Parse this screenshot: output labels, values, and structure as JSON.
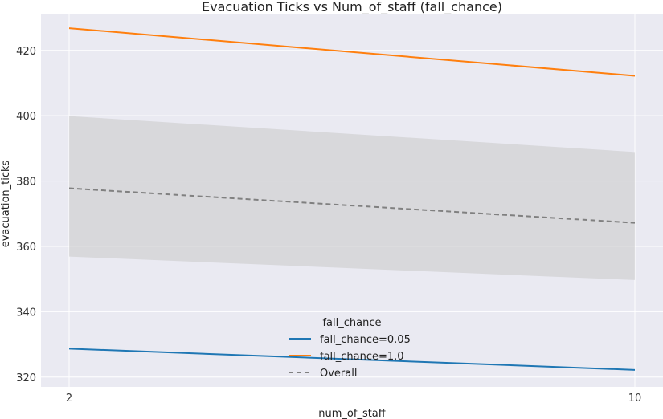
{
  "chart_data": {
    "type": "line",
    "title": "Evacuation Ticks vs Num_of_staff (fall_chance)",
    "xlabel": "num_of_staff",
    "ylabel": "evacuation_ticks",
    "x": [
      2,
      10
    ],
    "x_ticks": [
      2,
      10
    ],
    "ylim": [
      317,
      431
    ],
    "y_ticks": [
      320,
      340,
      360,
      380,
      400,
      420
    ],
    "grid": true,
    "series": [
      {
        "name": "fall_chance=0.05",
        "values": [
          328.7,
          322.2
        ],
        "color": "#1f77b4",
        "style": "solid"
      },
      {
        "name": "fall_chance=1.0",
        "values": [
          426.8,
          412.2
        ],
        "color": "#ff7f0e",
        "style": "solid"
      },
      {
        "name": "Overall",
        "values": [
          377.8,
          367.2
        ],
        "color": "#808080",
        "style": "dashed",
        "band_lower": [
          356.9,
          349.7
        ],
        "band_upper": [
          399.9,
          388.9
        ]
      }
    ],
    "legend": {
      "title": "fall_chance",
      "placement": "bottom-center"
    },
    "colors": {
      "plot_background": "#eaeaf2",
      "grid": "#ffffff",
      "band": "#c8c8c8"
    }
  }
}
